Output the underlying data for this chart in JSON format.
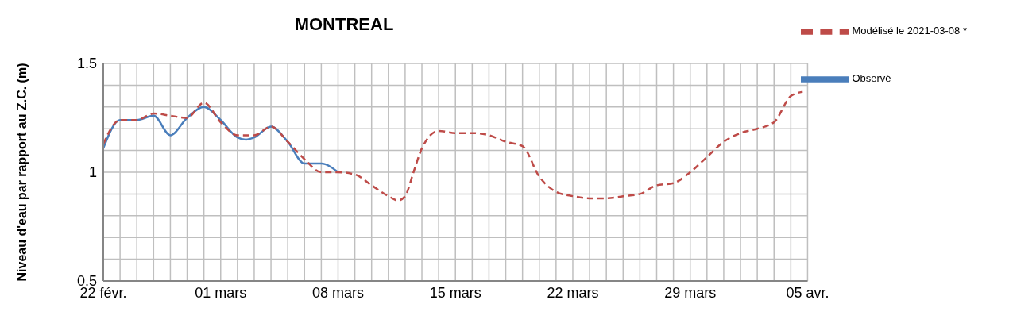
{
  "chart_data": {
    "type": "line",
    "title": "MONTREAL",
    "ylabel": "Niveau d'eau par rapport au Z.C. (m)",
    "xlim": [
      "2021-02-22",
      "2021-04-05"
    ],
    "xticks": [
      {
        "value": "2021-02-22",
        "label": "22 févr."
      },
      {
        "value": "2021-02-23",
        "label": null
      },
      {
        "value": "2021-02-24",
        "label": null
      },
      {
        "value": "2021-02-25",
        "label": null
      },
      {
        "value": "2021-02-26",
        "label": null
      },
      {
        "value": "2021-02-27",
        "label": null
      },
      {
        "value": "2021-02-28",
        "label": null
      },
      {
        "value": "2021-03-01",
        "label": "01 mars"
      },
      {
        "value": "2021-03-02",
        "label": null
      },
      {
        "value": "2021-03-03",
        "label": null
      },
      {
        "value": "2021-03-04",
        "label": null
      },
      {
        "value": "2021-03-05",
        "label": null
      },
      {
        "value": "2021-03-06",
        "label": null
      },
      {
        "value": "2021-03-07",
        "label": null
      },
      {
        "value": "2021-03-08",
        "label": "08 mars"
      },
      {
        "value": "2021-03-09",
        "label": null
      },
      {
        "value": "2021-03-10",
        "label": null
      },
      {
        "value": "2021-03-11",
        "label": null
      },
      {
        "value": "2021-03-12",
        "label": null
      },
      {
        "value": "2021-03-13",
        "label": null
      },
      {
        "value": "2021-03-14",
        "label": null
      },
      {
        "value": "2021-03-15",
        "label": "15 mars"
      },
      {
        "value": "2021-03-16",
        "label": null
      },
      {
        "value": "2021-03-17",
        "label": null
      },
      {
        "value": "2021-03-18",
        "label": null
      },
      {
        "value": "2021-03-19",
        "label": null
      },
      {
        "value": "2021-03-20",
        "label": null
      },
      {
        "value": "2021-03-21",
        "label": null
      },
      {
        "value": "2021-03-22",
        "label": "22 mars"
      },
      {
        "value": "2021-03-23",
        "label": null
      },
      {
        "value": "2021-03-24",
        "label": null
      },
      {
        "value": "2021-03-25",
        "label": null
      },
      {
        "value": "2021-03-26",
        "label": null
      },
      {
        "value": "2021-03-27",
        "label": null
      },
      {
        "value": "2021-03-28",
        "label": null
      },
      {
        "value": "2021-03-29",
        "label": "29 mars"
      },
      {
        "value": "2021-03-30",
        "label": null
      },
      {
        "value": "2021-03-31",
        "label": null
      },
      {
        "value": "2021-04-01",
        "label": null
      },
      {
        "value": "2021-04-02",
        "label": null
      },
      {
        "value": "2021-04-03",
        "label": null
      },
      {
        "value": "2021-04-04",
        "label": null
      },
      {
        "value": "2021-04-05",
        "label": "05 avr."
      }
    ],
    "ylim": [
      0.5,
      1.5
    ],
    "yticks": [
      0.5,
      {
        "value": 0.6,
        "label": null
      },
      {
        "value": 0.7,
        "label": null
      },
      {
        "value": 0.8,
        "label": null
      },
      {
        "value": 0.9,
        "label": null
      },
      1,
      {
        "value": 1.1,
        "label": null
      },
      {
        "value": 1.2,
        "label": null
      },
      {
        "value": 1.3,
        "label": null
      },
      {
        "value": 1.4,
        "label": null
      },
      1.5
    ],
    "grid": true,
    "legend": "top right",
    "marker": "none",
    "series": [
      {
        "name": "Observé",
        "color": "#4a7ebb",
        "line_style": "solid",
        "x": [
          "2021-02-22",
          "2021-02-23",
          "2021-02-24",
          "2021-02-25",
          "2021-02-26",
          "2021-02-27",
          "2021-02-28",
          "2021-03-01",
          "2021-03-02",
          "2021-03-02T12:00",
          "2021-03-03",
          "2021-03-04",
          "2021-03-05",
          "2021-03-06",
          "2021-03-07",
          "2021-03-08"
        ],
        "values": [
          1.11,
          1.24,
          1.24,
          1.26,
          1.17,
          1.25,
          1.3,
          1.24,
          1.16,
          1.15,
          1.16,
          1.21,
          1.14,
          1.04,
          1.04,
          1.0
        ]
      },
      {
        "name": "Modélisé le 2021-03-08 *",
        "color": "#be4b48",
        "line_style": "dashed",
        "x": [
          "2021-02-22",
          "2021-02-23",
          "2021-02-24",
          "2021-02-25",
          "2021-02-26",
          "2021-02-27",
          "2021-02-28",
          "2021-03-01",
          "2021-03-02",
          "2021-03-03",
          "2021-03-04",
          "2021-03-05",
          "2021-03-06",
          "2021-03-07",
          "2021-03-08",
          "2021-03-09",
          "2021-03-10",
          "2021-03-11",
          "2021-03-11T14:00",
          "2021-03-12",
          "2021-03-12T12:00",
          "2021-03-13",
          "2021-03-14",
          "2021-03-15",
          "2021-03-16",
          "2021-03-17",
          "2021-03-18",
          "2021-03-19",
          "2021-03-20",
          "2021-03-21",
          "2021-03-22",
          "2021-03-23",
          "2021-03-24",
          "2021-03-25",
          "2021-03-26",
          "2021-03-27",
          "2021-03-28",
          "2021-03-29",
          "2021-03-30",
          "2021-03-31",
          "2021-04-01",
          "2021-04-02",
          "2021-04-03",
          "2021-04-04",
          "2021-04-04T17:00"
        ],
        "values": [
          1.13,
          1.24,
          1.24,
          1.27,
          1.26,
          1.25,
          1.32,
          1.23,
          1.17,
          1.17,
          1.21,
          1.14,
          1.06,
          1.0,
          1.0,
          0.99,
          0.94,
          0.89,
          0.87,
          0.89,
          1.0,
          1.11,
          1.19,
          1.18,
          1.18,
          1.17,
          1.14,
          1.12,
          0.98,
          0.91,
          0.89,
          0.88,
          0.88,
          0.89,
          0.9,
          0.94,
          0.95,
          1.0,
          1.07,
          1.14,
          1.18,
          1.2,
          1.23,
          1.35,
          1.37
        ]
      }
    ]
  }
}
